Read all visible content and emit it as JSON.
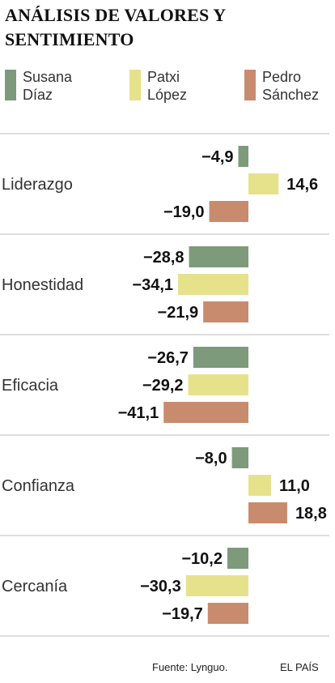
{
  "chart_data": {
    "type": "bar",
    "title": "ANÁLISIS DE VALORES Y SENTIMIENTO",
    "categories": [
      "Liderazgo",
      "Honestidad",
      "Eficacia",
      "Confianza",
      "Cercanía"
    ],
    "series": [
      {
        "name": "Susana Díaz",
        "color": "#7d9a7b",
        "values": [
          -4.9,
          -28.8,
          -26.7,
          -8.0,
          -10.2
        ],
        "labels": [
          "−4,9",
          "−28,8",
          "−26,7",
          "−8,0",
          "−10,2"
        ]
      },
      {
        "name": "Patxi López",
        "color": "#e6e28c",
        "values": [
          14.6,
          -34.1,
          -29.2,
          11.0,
          -30.3
        ],
        "labels": [
          "14,6",
          "−34,1",
          "−29,2",
          "11,0",
          "−30,3"
        ]
      },
      {
        "name": "Pedro Sánchez",
        "color": "#c98b6e",
        "values": [
          -19.0,
          -21.9,
          -41.1,
          18.8,
          -19.7
        ],
        "labels": [
          "−19,0",
          "−21,9",
          "−41,1",
          "18,8",
          "−19,7"
        ]
      }
    ]
  },
  "legend": [
    {
      "line1": "Susana",
      "line2": "Díaz",
      "color": "#7d9a7b"
    },
    {
      "line1": "Patxi",
      "line2": "López",
      "color": "#e6e28c"
    },
    {
      "line1": "Pedro",
      "line2": "Sánchez",
      "color": "#c98b6e"
    }
  ],
  "footer": {
    "source": "Fuente: Lynguo.",
    "brand": "EL PAÍS"
  }
}
